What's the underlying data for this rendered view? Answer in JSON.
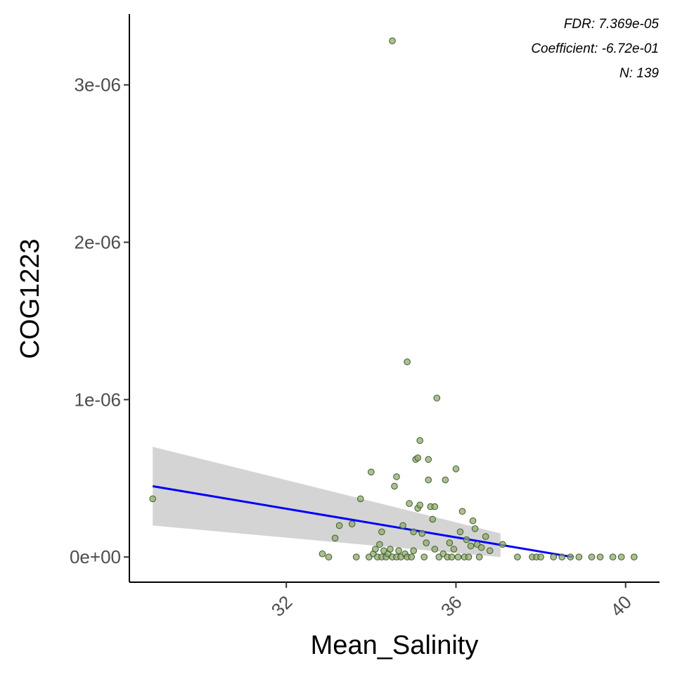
{
  "chart_data": {
    "type": "scatter",
    "xlabel": "Mean_Salinity",
    "ylabel": "COG1223",
    "xlim": [
      28.3,
      40.8
    ],
    "ylim": [
      -1.6e-07,
      3.45e-06
    ],
    "x_ticks": [
      {
        "value": 32,
        "label": "32"
      },
      {
        "value": 36,
        "label": "36"
      },
      {
        "value": 40,
        "label": "40"
      }
    ],
    "y_ticks": [
      {
        "value": 0,
        "label": "0e+00"
      },
      {
        "value": 1e-06,
        "label": "1e-06"
      },
      {
        "value": 2e-06,
        "label": "2e-06"
      },
      {
        "value": 3e-06,
        "label": "3e-06"
      }
    ],
    "annotations": [
      "FDR: 7.369e-05",
      "Coefficient: -6.72e-01",
      "N: 139"
    ],
    "grid": false,
    "legend": "none",
    "colors": {
      "points": "#8fac6e",
      "point_stroke": "#3f5a2a",
      "trend": "#0000ff",
      "ribbon": "#d4d4d4",
      "axis": "#000000"
    },
    "trend_line": {
      "x": [
        28.85,
        38.75
      ],
      "y": [
        4.5e-07,
        0.0
      ]
    },
    "confidence_band": {
      "x": [
        28.85,
        37.05
      ],
      "upper": [
        7e-07,
        1.5e-07
      ],
      "lower": [
        2e-07,
        0.0
      ]
    },
    "points": [
      {
        "x": 28.85,
        "y": 3.7e-07
      },
      {
        "x": 32.85,
        "y": 2e-08
      },
      {
        "x": 33.0,
        "y": 0.0
      },
      {
        "x": 33.15,
        "y": 1.2e-07
      },
      {
        "x": 33.25,
        "y": 2e-07
      },
      {
        "x": 33.55,
        "y": 2.1e-07
      },
      {
        "x": 33.65,
        "y": 0.0
      },
      {
        "x": 33.75,
        "y": 3.7e-07
      },
      {
        "x": 33.95,
        "y": 0.0
      },
      {
        "x": 34.0,
        "y": 5.4e-07
      },
      {
        "x": 34.05,
        "y": 2e-08
      },
      {
        "x": 34.1,
        "y": 5e-08
      },
      {
        "x": 34.15,
        "y": 0.0
      },
      {
        "x": 34.2,
        "y": 8e-08
      },
      {
        "x": 34.25,
        "y": 0.0
      },
      {
        "x": 34.25,
        "y": 1.6e-07
      },
      {
        "x": 34.3,
        "y": 4e-08
      },
      {
        "x": 34.35,
        "y": 0.0
      },
      {
        "x": 34.4,
        "y": 2e-08
      },
      {
        "x": 34.45,
        "y": 5e-08
      },
      {
        "x": 34.5,
        "y": 3.28e-06
      },
      {
        "x": 34.5,
        "y": 0.0
      },
      {
        "x": 34.55,
        "y": 4.5e-07
      },
      {
        "x": 34.6,
        "y": 5.1e-07
      },
      {
        "x": 34.6,
        "y": 0.0
      },
      {
        "x": 34.65,
        "y": 4e-08
      },
      {
        "x": 34.7,
        "y": 0.0
      },
      {
        "x": 34.75,
        "y": 2e-07
      },
      {
        "x": 34.8,
        "y": 2e-08
      },
      {
        "x": 34.85,
        "y": 1.24e-06
      },
      {
        "x": 34.85,
        "y": 0.0
      },
      {
        "x": 34.9,
        "y": 3.4e-07
      },
      {
        "x": 34.95,
        "y": 0.0
      },
      {
        "x": 35.0,
        "y": 1.6e-07
      },
      {
        "x": 35.0,
        "y": 4e-08
      },
      {
        "x": 35.05,
        "y": 6.2e-07
      },
      {
        "x": 35.1,
        "y": 6.3e-07
      },
      {
        "x": 35.1,
        "y": 3.1e-07
      },
      {
        "x": 35.15,
        "y": 7.4e-07
      },
      {
        "x": 35.15,
        "y": 3.3e-07
      },
      {
        "x": 35.2,
        "y": 1.5e-07
      },
      {
        "x": 35.25,
        "y": 0.0
      },
      {
        "x": 35.3,
        "y": 9e-08
      },
      {
        "x": 35.35,
        "y": 6.2e-07
      },
      {
        "x": 35.35,
        "y": 4.9e-07
      },
      {
        "x": 35.4,
        "y": 3.2e-07
      },
      {
        "x": 35.45,
        "y": 2.4e-07
      },
      {
        "x": 35.5,
        "y": 3.2e-07
      },
      {
        "x": 35.5,
        "y": 5e-08
      },
      {
        "x": 35.55,
        "y": 1.01e-06
      },
      {
        "x": 35.6,
        "y": 0.0
      },
      {
        "x": 35.7,
        "y": 2e-08
      },
      {
        "x": 35.75,
        "y": 4.9e-07
      },
      {
        "x": 35.8,
        "y": 0.0
      },
      {
        "x": 35.85,
        "y": 9e-08
      },
      {
        "x": 35.9,
        "y": 0.0
      },
      {
        "x": 35.95,
        "y": 5e-08
      },
      {
        "x": 36.0,
        "y": 5.6e-07
      },
      {
        "x": 36.05,
        "y": 0.0
      },
      {
        "x": 36.1,
        "y": 1.6e-07
      },
      {
        "x": 36.15,
        "y": 2.9e-07
      },
      {
        "x": 36.2,
        "y": 0.0
      },
      {
        "x": 36.25,
        "y": 1.1e-07
      },
      {
        "x": 36.3,
        "y": 0.0
      },
      {
        "x": 36.35,
        "y": 7e-08
      },
      {
        "x": 36.4,
        "y": 2.3e-07
      },
      {
        "x": 36.45,
        "y": 1.8e-07
      },
      {
        "x": 36.5,
        "y": 8e-08
      },
      {
        "x": 36.55,
        "y": 0.0
      },
      {
        "x": 36.6,
        "y": 6e-08
      },
      {
        "x": 36.7,
        "y": 1.3e-07
      },
      {
        "x": 36.8,
        "y": 4e-08
      },
      {
        "x": 37.1,
        "y": 8e-08
      },
      {
        "x": 37.45,
        "y": 0.0
      },
      {
        "x": 37.8,
        "y": 0.0
      },
      {
        "x": 37.9,
        "y": 0.0
      },
      {
        "x": 38.0,
        "y": 0.0
      },
      {
        "x": 38.3,
        "y": 0.0
      },
      {
        "x": 38.5,
        "y": 0.0
      },
      {
        "x": 38.7,
        "y": 0.0
      },
      {
        "x": 38.9,
        "y": 0.0
      },
      {
        "x": 39.2,
        "y": 0.0
      },
      {
        "x": 39.4,
        "y": 0.0
      },
      {
        "x": 39.7,
        "y": 0.0
      },
      {
        "x": 39.9,
        "y": 0.0
      },
      {
        "x": 40.2,
        "y": 0.0
      }
    ]
  }
}
